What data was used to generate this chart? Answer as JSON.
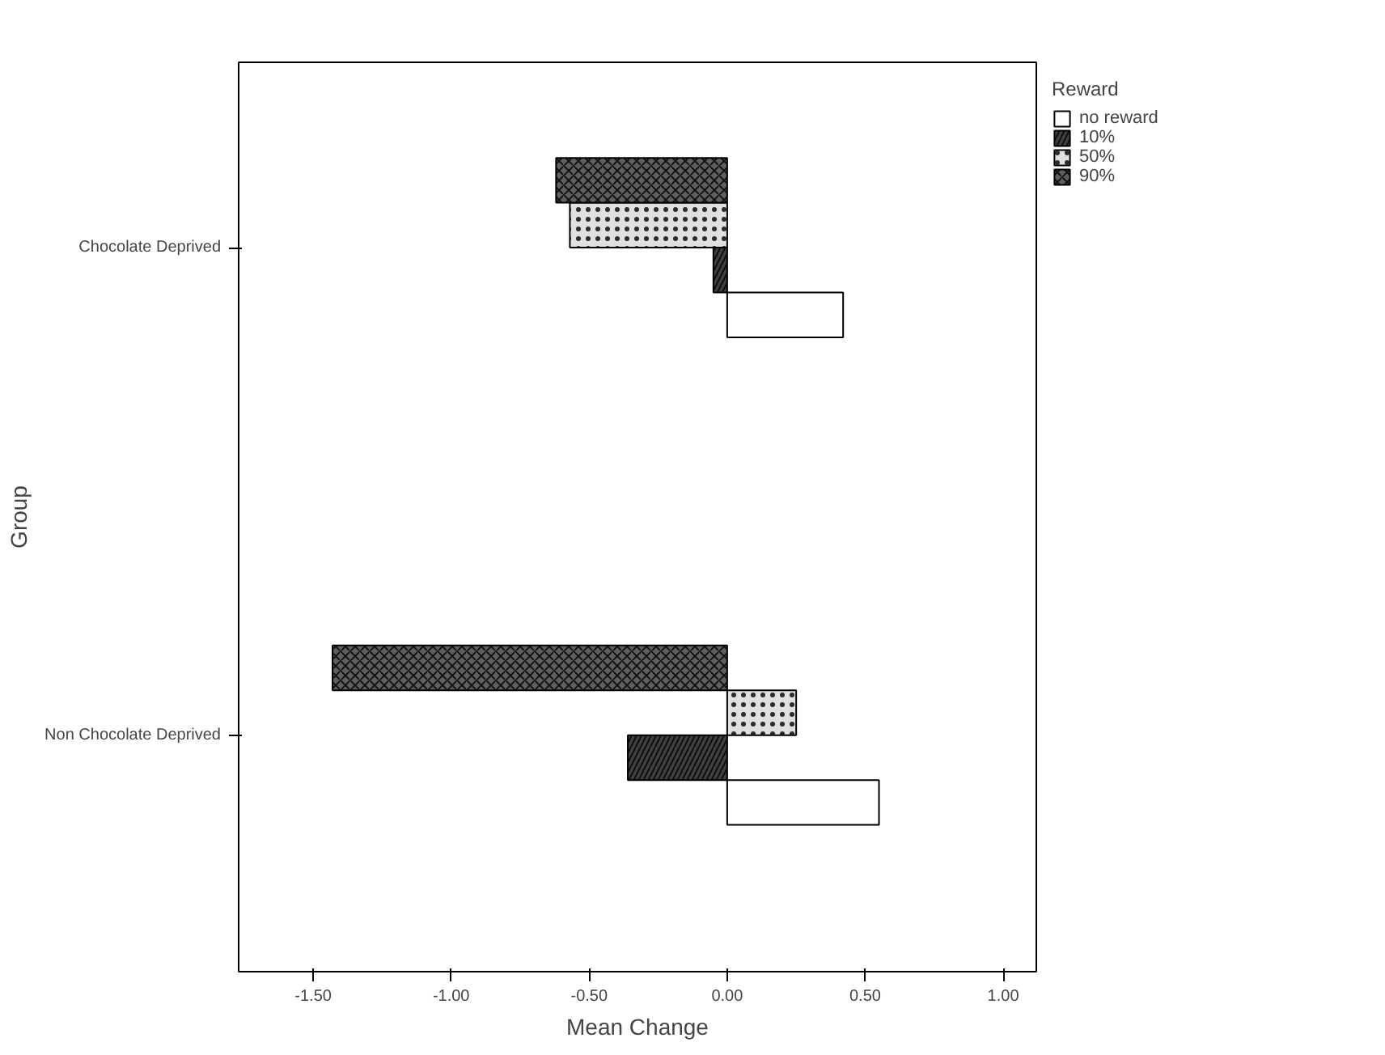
{
  "chart_data": {
    "type": "bar",
    "orientation": "horizontal",
    "xlabel": "Mean Change",
    "ylabel": "Group",
    "legend_title": "Reward",
    "legend": "top right",
    "grid": false,
    "categories": [
      "Chocolate Deprived",
      "Non Chocolate Deprived"
    ],
    "series": [
      {
        "name": "no reward",
        "color": "#ffffff",
        "values": [
          0.42,
          0.55
        ]
      },
      {
        "name": "10%",
        "color": "#404040",
        "values": [
          -0.05,
          -0.36
        ]
      },
      {
        "name": "50%",
        "color": "#e0e0e0",
        "values": [
          -0.57,
          0.25
        ]
      },
      {
        "name": "90%",
        "color": "#606060",
        "values": [
          -0.62,
          -1.43
        ]
      }
    ],
    "xlim": [
      -1.77,
      1.12
    ],
    "xticks": [
      {
        "value": -1.5,
        "label": "-1.50"
      },
      {
        "value": -1.0,
        "label": "-1.00"
      },
      {
        "value": -0.5,
        "label": "-0.50"
      },
      {
        "value": 0,
        "label": "0.00"
      },
      {
        "value": 0.5,
        "label": "0.50"
      },
      {
        "value": 1.0,
        "label": "1.00"
      }
    ]
  }
}
